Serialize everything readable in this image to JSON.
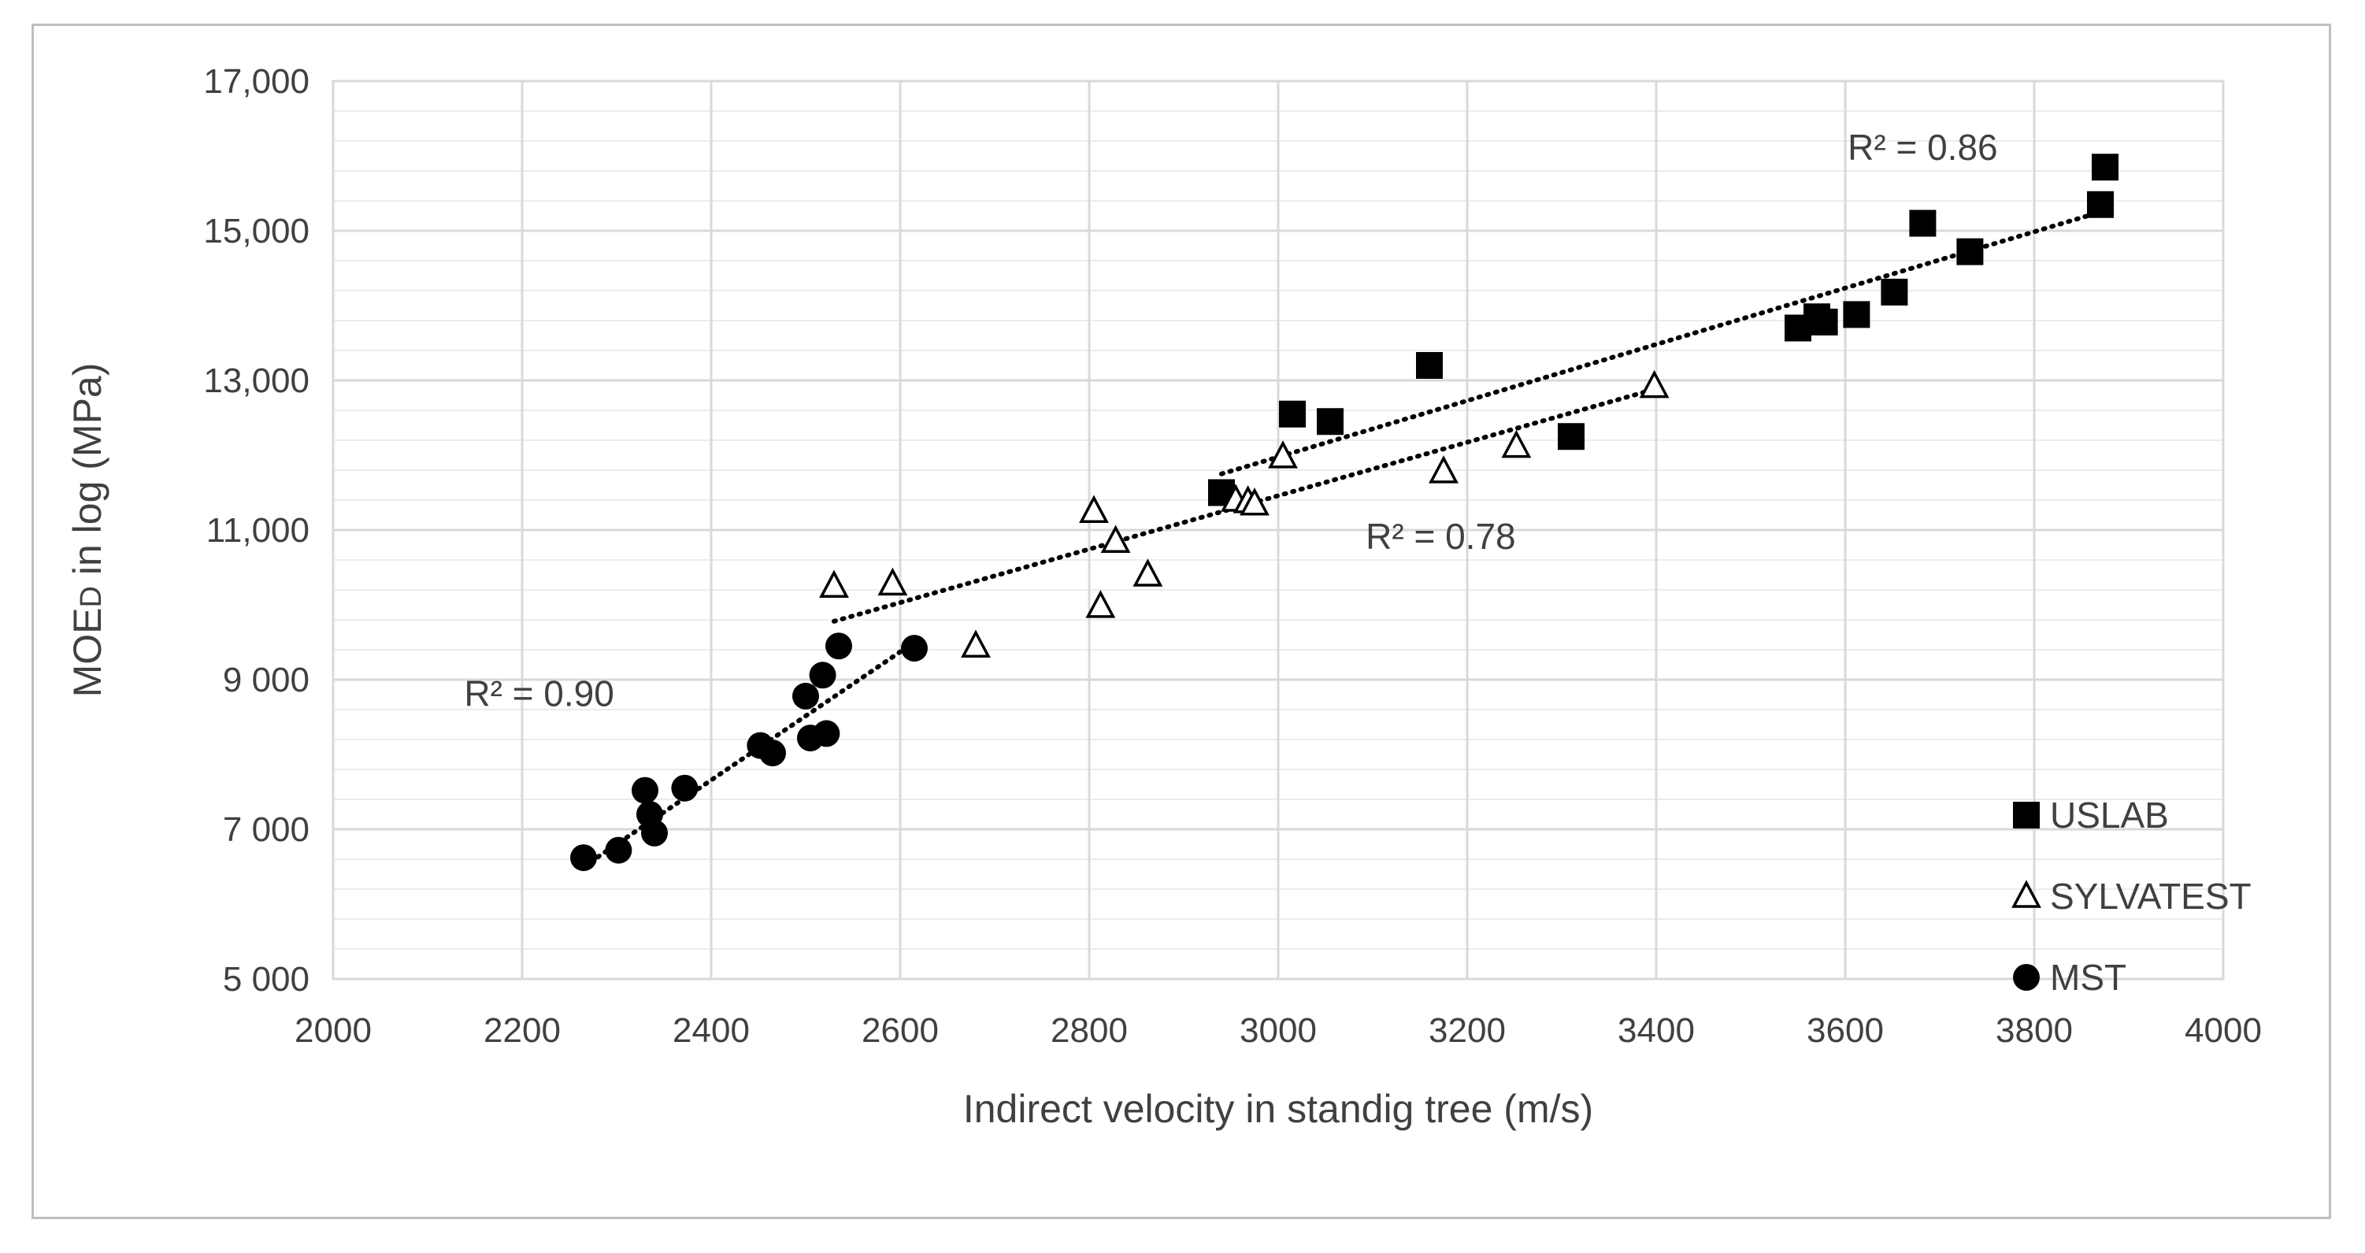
{
  "chart_data": {
    "type": "scatter",
    "title": "",
    "xlabel": "Indirect velocity in standig tree (m/s)",
    "ylabel": "MOED in log (MPa)",
    "ylabel_parts": {
      "main": "MOE",
      "sub": "D",
      "rest": " in log (MPa)"
    },
    "xlim": [
      2000,
      4000
    ],
    "ylim": [
      5000,
      17000
    ],
    "x_ticks": [
      {
        "value": 2000,
        "label": "2000"
      },
      {
        "value": 2200,
        "label": "2200"
      },
      {
        "value": 2400,
        "label": "2400"
      },
      {
        "value": 2600,
        "label": "2600"
      },
      {
        "value": 2800,
        "label": "2800"
      },
      {
        "value": 3000,
        "label": "3000"
      },
      {
        "value": 3200,
        "label": "3200"
      },
      {
        "value": 3400,
        "label": "3400"
      },
      {
        "value": 3600,
        "label": "3600"
      },
      {
        "value": 3800,
        "label": "3800"
      },
      {
        "value": 4000,
        "label": "4000"
      }
    ],
    "y_ticks": [
      {
        "value": 5000,
        "label": "5 000"
      },
      {
        "value": 7000,
        "label": "7 000"
      },
      {
        "value": 9000,
        "label": "9 000"
      },
      {
        "value": 11000,
        "label": "11,000"
      },
      {
        "value": 13000,
        "label": "13,000"
      },
      {
        "value": 15000,
        "label": "15,000"
      },
      {
        "value": 17000,
        "label": "17,000"
      }
    ],
    "minor_y_step": 400,
    "grid": true,
    "legend_position": "bottom-right",
    "series": [
      {
        "name": "USLAB",
        "marker": "square",
        "color": "#000000",
        "points": [
          [
            2940,
            11500
          ],
          [
            3015,
            12550
          ],
          [
            3055,
            12450
          ],
          [
            3160,
            13200
          ],
          [
            3310,
            12250
          ],
          [
            3550,
            13700
          ],
          [
            3570,
            13850
          ],
          [
            3578,
            13780
          ],
          [
            3612,
            13880
          ],
          [
            3652,
            14180
          ],
          [
            3682,
            15100
          ],
          [
            3732,
            14720
          ],
          [
            3870,
            15350
          ],
          [
            3875,
            15850
          ]
        ],
        "trend": {
          "x": [
            2940,
            3870
          ],
          "y": [
            11750,
            15250
          ],
          "r2_label": "R² = 0.86"
        }
      },
      {
        "name": "SYLVATEST",
        "marker": "triangle",
        "color": "#000000",
        "points": [
          [
            2530,
            10250
          ],
          [
            2592,
            10280
          ],
          [
            2680,
            9450
          ],
          [
            2805,
            11250
          ],
          [
            2812,
            9980
          ],
          [
            2828,
            10850
          ],
          [
            2862,
            10400
          ],
          [
            2955,
            11400
          ],
          [
            2968,
            11380
          ],
          [
            2975,
            11350
          ],
          [
            3005,
            11980
          ],
          [
            3175,
            11780
          ],
          [
            3252,
            12120
          ],
          [
            3398,
            12920
          ]
        ],
        "trend": {
          "x": [
            2530,
            3398
          ],
          "y": [
            9780,
            12880
          ],
          "r2_label": "R² = 0.78"
        }
      },
      {
        "name": "MST",
        "marker": "circle",
        "color": "#000000",
        "points": [
          [
            2265,
            6620
          ],
          [
            2302,
            6720
          ],
          [
            2330,
            7520
          ],
          [
            2335,
            7200
          ],
          [
            2340,
            6950
          ],
          [
            2372,
            7550
          ],
          [
            2452,
            8120
          ],
          [
            2465,
            8020
          ],
          [
            2500,
            8780
          ],
          [
            2505,
            8220
          ],
          [
            2518,
            9060
          ],
          [
            2522,
            8280
          ],
          [
            2535,
            9450
          ],
          [
            2615,
            9420
          ]
        ],
        "trend": {
          "x": [
            2265,
            2615
          ],
          "y": [
            6500,
            9500
          ],
          "r2_label": "R² = 0.90"
        }
      }
    ],
    "annotations": [
      {
        "text": "R² = 0.86",
        "x": 3682,
        "y": 15950
      },
      {
        "text": "R² = 0.78",
        "x": 3172,
        "y": 10750
      },
      {
        "text": "R² = 0.90",
        "x": 2218,
        "y": 8650
      }
    ]
  }
}
